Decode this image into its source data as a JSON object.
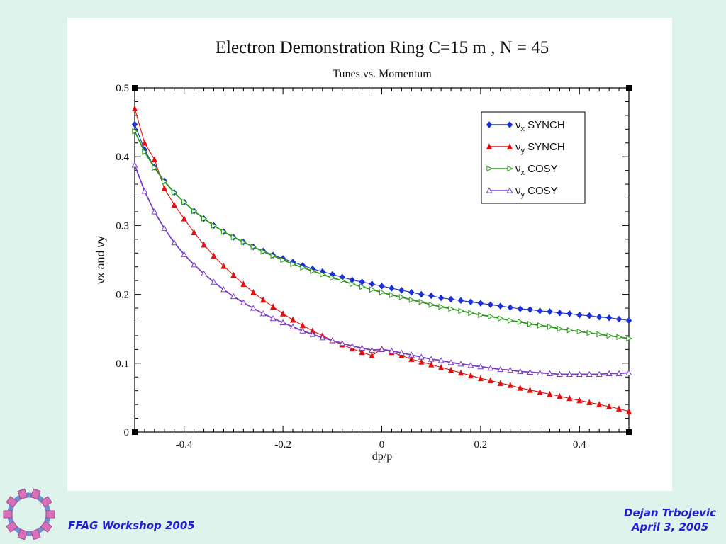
{
  "colors": {
    "background": "#ddf3ec",
    "footer_text": "#1f1fd1",
    "synch_x": "#1a2fd6",
    "synch_y": "#e01010",
    "cosy_x": "#2a9a1a",
    "cosy_y": "#7a3cc8"
  },
  "footer": {
    "left": "FFAG Workshop 2005",
    "author": "Dejan Trbojevic",
    "date": "April 3, 2005"
  },
  "logo": {
    "icon": "ffag-ring-logo-icon"
  },
  "chart_data": {
    "type": "line",
    "title": "Electron Demonstration Ring C=15 m , N = 45",
    "subtitle": "Tunes vs. Momentum",
    "xlabel": "dp/p",
    "ylabel": "νx and νy",
    "xlim": [
      -0.5,
      0.5
    ],
    "ylim": [
      0,
      0.5
    ],
    "x_ticks": [
      -0.4,
      -0.2,
      0,
      0.2,
      0.4
    ],
    "x_tick_labels": [
      "-0.4",
      "-0.2",
      "0",
      "0.2",
      "0.4"
    ],
    "y_ticks": [
      0,
      0.1,
      0.2,
      0.3,
      0.4,
      0.5
    ],
    "y_tick_labels": [
      "0",
      "0.1",
      "0.2",
      "0.3",
      "0.4",
      "0.5"
    ],
    "grid": false,
    "legend_position": "top-right",
    "x": [
      -0.5,
      -0.48,
      -0.46,
      -0.44,
      -0.42,
      -0.4,
      -0.38,
      -0.36,
      -0.34,
      -0.32,
      -0.3,
      -0.28,
      -0.26,
      -0.24,
      -0.22,
      -0.2,
      -0.18,
      -0.16,
      -0.14,
      -0.12,
      -0.1,
      -0.08,
      -0.06,
      -0.04,
      -0.02,
      0,
      0.02,
      0.04,
      0.06,
      0.08,
      0.1,
      0.12,
      0.14,
      0.16,
      0.18,
      0.2,
      0.22,
      0.24,
      0.26,
      0.28,
      0.3,
      0.32,
      0.34,
      0.36,
      0.38,
      0.4,
      0.42,
      0.44,
      0.46,
      0.48,
      0.5
    ],
    "series": [
      {
        "name": "νx SYNCH",
        "name_base": "ν",
        "name_sub": "x",
        "name_rest": " SYNCH",
        "marker": "diamond",
        "color": "#1a2fd6",
        "values": [
          0.447,
          0.41,
          0.385,
          0.365,
          0.348,
          0.334,
          0.321,
          0.31,
          0.3,
          0.291,
          0.283,
          0.276,
          0.269,
          0.263,
          0.257,
          0.252,
          0.247,
          0.242,
          0.237,
          0.233,
          0.229,
          0.225,
          0.221,
          0.218,
          0.215,
          0.212,
          0.209,
          0.206,
          0.203,
          0.2,
          0.198,
          0.195,
          0.193,
          0.191,
          0.189,
          0.187,
          0.185,
          0.183,
          0.181,
          0.179,
          0.178,
          0.176,
          0.175,
          0.173,
          0.172,
          0.17,
          0.169,
          0.167,
          0.166,
          0.164,
          0.162
        ]
      },
      {
        "name": "νy SYNCH",
        "name_base": "ν",
        "name_sub": "y",
        "name_rest": " SYNCH",
        "marker": "triangle-filled",
        "color": "#e01010",
        "values": [
          0.47,
          0.42,
          0.396,
          0.354,
          0.33,
          0.31,
          0.29,
          0.272,
          0.256,
          0.241,
          0.228,
          0.215,
          0.203,
          0.192,
          0.182,
          0.172,
          0.163,
          0.155,
          0.147,
          0.14,
          0.133,
          0.127,
          0.121,
          0.116,
          0.111,
          0.121,
          0.116,
          0.111,
          0.106,
          0.102,
          0.098,
          0.094,
          0.09,
          0.086,
          0.082,
          0.078,
          0.075,
          0.071,
          0.068,
          0.064,
          0.061,
          0.058,
          0.055,
          0.052,
          0.049,
          0.046,
          0.043,
          0.04,
          0.037,
          0.034,
          0.03
        ]
      },
      {
        "name": "νx COSY",
        "name_base": "ν",
        "name_sub": "x",
        "name_rest": " COSY",
        "marker": "triangle-right-open",
        "color": "#2a9a1a",
        "values": [
          0.437,
          0.407,
          0.384,
          0.364,
          0.348,
          0.334,
          0.321,
          0.31,
          0.3,
          0.291,
          0.283,
          0.276,
          0.269,
          0.262,
          0.256,
          0.25,
          0.244,
          0.239,
          0.234,
          0.229,
          0.224,
          0.22,
          0.215,
          0.211,
          0.207,
          0.203,
          0.199,
          0.196,
          0.192,
          0.189,
          0.185,
          0.182,
          0.179,
          0.176,
          0.173,
          0.17,
          0.168,
          0.165,
          0.162,
          0.16,
          0.157,
          0.155,
          0.153,
          0.15,
          0.148,
          0.146,
          0.144,
          0.142,
          0.14,
          0.138,
          0.136
        ]
      },
      {
        "name": "νy COSY",
        "name_base": "ν",
        "name_sub": "y",
        "name_rest": " COSY",
        "marker": "triangle-open",
        "color": "#7a3cc8",
        "values": [
          0.388,
          0.35,
          0.32,
          0.296,
          0.275,
          0.258,
          0.243,
          0.23,
          0.218,
          0.207,
          0.197,
          0.188,
          0.18,
          0.172,
          0.165,
          0.159,
          0.153,
          0.147,
          0.142,
          0.137,
          0.133,
          0.129,
          0.125,
          0.122,
          0.119,
          0.12,
          0.118,
          0.115,
          0.112,
          0.109,
          0.106,
          0.104,
          0.101,
          0.099,
          0.097,
          0.095,
          0.093,
          0.091,
          0.09,
          0.088,
          0.087,
          0.086,
          0.085,
          0.084,
          0.084,
          0.084,
          0.084,
          0.084,
          0.085,
          0.085,
          0.086
        ]
      }
    ]
  }
}
